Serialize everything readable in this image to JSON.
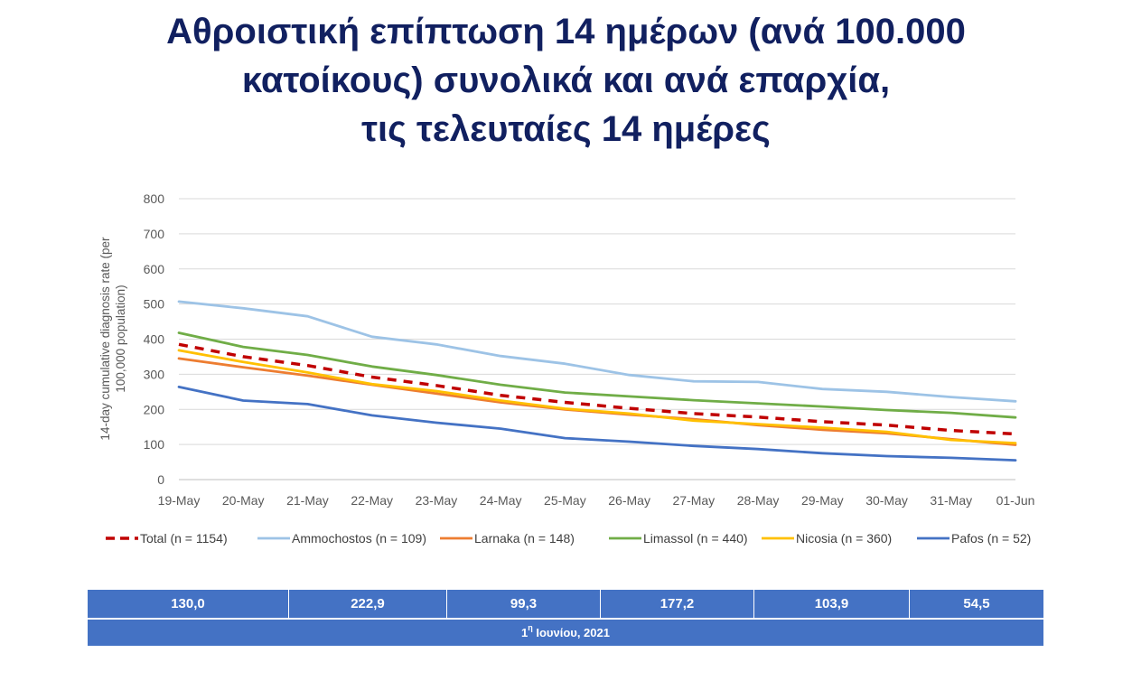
{
  "title": {
    "line1": "Αθροιστική επίπτωση 14 ημέρων (ανά 100.000",
    "line2": "κατοίκους) συνολικά και ανά επαρχία,",
    "line3": "τις τελευταίες 14 ημέρες"
  },
  "chart_data": {
    "type": "line",
    "ylabel": "14-day cumulative diagnosis rate (per 100,000 population)",
    "xlabel": "",
    "ylim": [
      0,
      800
    ],
    "yticks": [
      0,
      100,
      200,
      300,
      400,
      500,
      600,
      700,
      800
    ],
    "grid": true,
    "legend_position": "bottom",
    "categories": [
      "19-May",
      "20-May",
      "21-May",
      "22-May",
      "23-May",
      "24-May",
      "25-May",
      "26-May",
      "27-May",
      "28-May",
      "29-May",
      "30-May",
      "31-May",
      "01-Jun"
    ],
    "series": [
      {
        "name": "Total (n = 1154)",
        "color": "#C00000",
        "dashed": true,
        "values": [
          385,
          350,
          325,
          292,
          268,
          240,
          220,
          203,
          188,
          178,
          165,
          155,
          140,
          130
        ]
      },
      {
        "name": "Ammochostos (n = 109)",
        "color": "#9DC3E6",
        "dashed": false,
        "values": [
          507,
          488,
          465,
          407,
          385,
          352,
          330,
          298,
          280,
          278,
          258,
          250,
          235,
          223
        ]
      },
      {
        "name": "Larnaka (n = 148)",
        "color": "#ED7D31",
        "dashed": false,
        "values": [
          345,
          320,
          296,
          270,
          245,
          220,
          200,
          185,
          172,
          155,
          142,
          132,
          115,
          99
        ]
      },
      {
        "name": "Limassol (n = 440)",
        "color": "#70AD47",
        "dashed": false,
        "values": [
          418,
          378,
          355,
          322,
          298,
          270,
          248,
          237,
          226,
          217,
          208,
          198,
          190,
          177
        ]
      },
      {
        "name": "Nicosia (n = 360)",
        "color": "#FFC000",
        "dashed": false,
        "values": [
          368,
          335,
          305,
          272,
          252,
          225,
          202,
          188,
          168,
          158,
          148,
          136,
          113,
          104
        ]
      },
      {
        "name": "Pafos (n = 52)",
        "color": "#4472C4",
        "dashed": false,
        "values": [
          264,
          225,
          215,
          183,
          162,
          145,
          118,
          108,
          96,
          87,
          75,
          67,
          62,
          55
        ]
      }
    ]
  },
  "stats": {
    "values": [
      "130,0",
      "222,9",
      "99,3",
      "177,2",
      "103,9",
      "54,5"
    ],
    "date_prefix": "1",
    "date_sup": "η",
    "date_suffix": " Ιουνίου, 2021"
  },
  "colors": {
    "title": "#112060",
    "table_fill": "#4472C4"
  }
}
